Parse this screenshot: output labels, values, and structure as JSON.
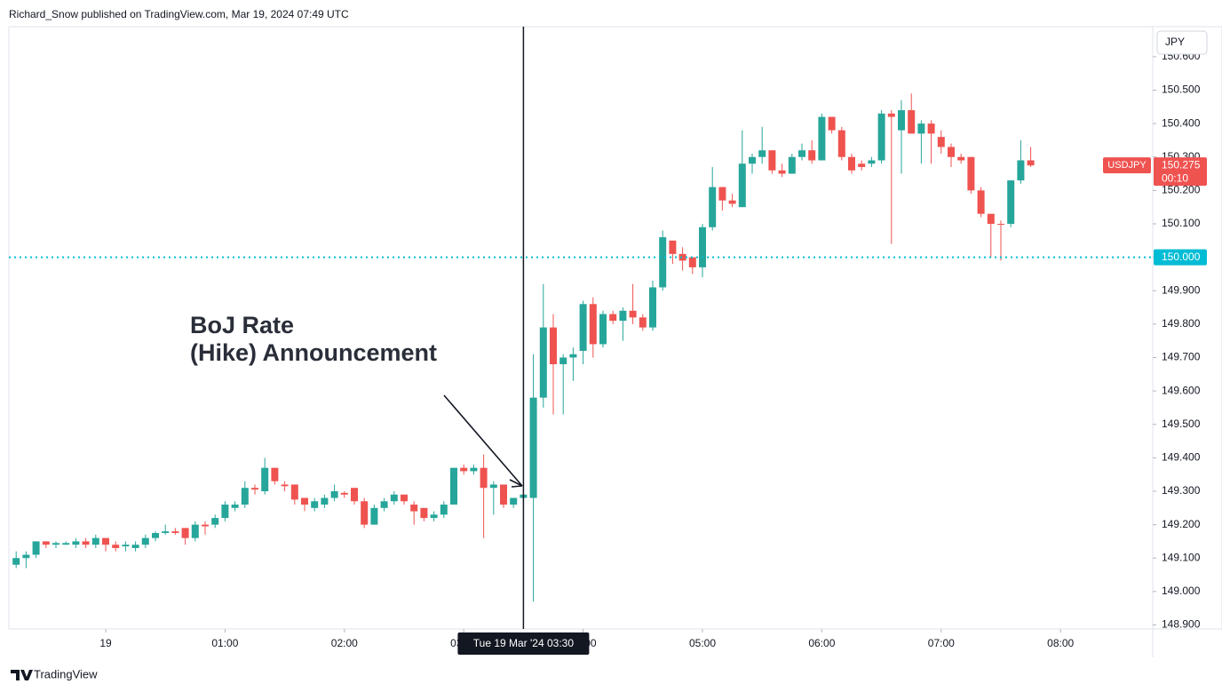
{
  "chart_data": {
    "type": "candlestick",
    "header": "Richard_Snow published on TradingView.com, Mar 19, 2024 07:49 UTC",
    "currency": "JPY",
    "symbol": "USDJPY",
    "countdown": "00:10",
    "brand": "TradingView",
    "annotation": [
      "BoJ Rate",
      "(Hike) Announcement"
    ],
    "up_color": "#26a69a",
    "down_color": "#ef5350",
    "ylim": [
      148.888,
      150.69
    ],
    "yticks": [
      {
        "value": 148.9,
        "label": "148.900"
      },
      {
        "value": 149.0,
        "label": "149.000"
      },
      {
        "value": 149.1,
        "label": "149.100"
      },
      {
        "value": 149.2,
        "label": "149.200"
      },
      {
        "value": 149.3,
        "label": "149.300"
      },
      {
        "value": 149.4,
        "label": "149.400"
      },
      {
        "value": 149.5,
        "label": "149.500"
      },
      {
        "value": 149.6,
        "label": "149.600"
      },
      {
        "value": 149.7,
        "label": "149.700"
      },
      {
        "value": 149.8,
        "label": "149.800"
      },
      {
        "value": 149.9,
        "label": "149.900"
      },
      {
        "value": 150.0,
        "label": "150.000"
      },
      {
        "value": 150.1,
        "label": "150.100"
      },
      {
        "value": 150.2,
        "label": "150.200"
      },
      {
        "value": 150.3,
        "label": "150.300"
      },
      {
        "value": 150.4,
        "label": "150.400"
      },
      {
        "value": 150.5,
        "label": "150.500"
      },
      {
        "value": 150.6,
        "label": "150.600"
      }
    ],
    "xticks": [
      {
        "value": "00:00",
        "label": "19"
      },
      "01:00",
      "02:00",
      "03:00",
      "04:00",
      "05:00",
      "06:00",
      "07:00",
      "08:00"
    ],
    "horizontal_line": {
      "value": 150.0,
      "label": "150.000",
      "color": "#00bcd4"
    },
    "last_price": {
      "value": 150.275,
      "label": "150.275"
    },
    "crosshair": {
      "x": "03:30",
      "label": "Tue 19 Mar '24  03:30"
    },
    "x": [
      "23:15",
      "23:20",
      "23:25",
      "23:30",
      "23:35",
      "23:40",
      "23:45",
      "23:50",
      "23:55",
      "00:00",
      "00:05",
      "00:10",
      "00:15",
      "00:20",
      "00:25",
      "00:30",
      "00:35",
      "00:40",
      "00:45",
      "00:50",
      "00:55",
      "01:00",
      "01:05",
      "01:10",
      "01:15",
      "01:20",
      "01:25",
      "01:30",
      "01:35",
      "01:40",
      "01:45",
      "01:50",
      "01:55",
      "02:00",
      "02:05",
      "02:10",
      "02:15",
      "02:20",
      "02:25",
      "02:30",
      "02:35",
      "02:40",
      "02:45",
      "02:50",
      "02:55",
      "03:00",
      "03:05",
      "03:10",
      "03:15",
      "03:20",
      "03:25",
      "03:30",
      "03:35",
      "03:40",
      "03:45",
      "03:50",
      "03:55",
      "04:00",
      "04:05",
      "04:10",
      "04:15",
      "04:20",
      "04:25",
      "04:30",
      "04:35",
      "04:40",
      "04:45",
      "04:50",
      "04:55",
      "05:00",
      "05:05",
      "05:10",
      "05:15",
      "05:20",
      "05:25",
      "05:30",
      "05:35",
      "05:40",
      "05:45",
      "05:50",
      "05:55",
      "06:00",
      "06:05",
      "06:10",
      "06:15",
      "06:20",
      "06:25",
      "06:30",
      "06:35",
      "06:40",
      "06:45",
      "06:50",
      "06:55",
      "07:00",
      "07:05",
      "07:10",
      "07:15",
      "07:20",
      "07:25",
      "07:30",
      "07:35",
      "07:40",
      "07:45"
    ],
    "open": [
      149.08,
      149.1,
      149.11,
      149.15,
      149.14,
      149.14,
      149.14,
      149.15,
      149.14,
      149.16,
      149.14,
      149.135,
      149.13,
      149.14,
      149.16,
      149.175,
      149.18,
      149.19,
      149.16,
      149.2,
      149.2,
      149.22,
      149.25,
      149.26,
      149.31,
      149.3,
      149.37,
      149.32,
      149.32,
      149.28,
      149.25,
      149.26,
      149.28,
      149.295,
      149.31,
      149.27,
      149.2,
      149.25,
      149.27,
      149.29,
      149.26,
      149.25,
      149.22,
      149.23,
      149.26,
      149.37,
      149.36,
      149.37,
      149.31,
      149.32,
      149.26,
      149.28,
      149.28,
      149.58,
      149.79,
      149.68,
      149.7,
      149.72,
      149.86,
      149.74,
      149.83,
      149.81,
      149.84,
      149.82,
      149.79,
      149.91,
      150.05,
      150.01,
      150.0,
      149.97,
      150.09,
      150.21,
      150.17,
      150.15,
      150.28,
      150.3,
      150.32,
      150.26,
      150.25,
      150.3,
      150.32,
      150.29,
      150.42,
      150.38,
      150.3,
      150.28,
      150.28,
      150.29,
      150.43,
      150.38,
      150.44,
      150.37,
      150.4,
      150.36,
      150.33,
      150.3,
      150.3,
      150.2,
      150.13,
      150.1,
      150.1,
      150.23,
      150.29
    ],
    "high": [
      149.12,
      149.12,
      149.15,
      149.15,
      149.15,
      149.15,
      149.16,
      149.16,
      149.17,
      149.16,
      149.15,
      149.15,
      149.15,
      149.17,
      149.18,
      149.2,
      149.19,
      149.19,
      149.21,
      149.21,
      149.23,
      149.27,
      149.27,
      149.33,
      149.32,
      149.4,
      149.37,
      149.33,
      149.32,
      149.28,
      149.28,
      149.29,
      149.32,
      149.3,
      149.31,
      149.28,
      149.26,
      149.28,
      149.3,
      149.29,
      149.27,
      149.25,
      149.24,
      149.27,
      149.37,
      149.38,
      149.38,
      149.41,
      149.33,
      149.32,
      149.28,
      149.3,
      149.71,
      149.92,
      149.83,
      149.71,
      149.73,
      149.87,
      149.88,
      149.84,
      149.84,
      149.85,
      149.92,
      149.83,
      149.93,
      150.08,
      150.05,
      150.03,
      150.0,
      150.1,
      150.27,
      150.21,
      150.19,
      150.38,
      150.31,
      150.39,
      150.32,
      150.28,
      150.31,
      150.34,
      150.35,
      150.43,
      150.42,
      150.39,
      150.31,
      150.29,
      150.3,
      150.44,
      150.44,
      150.47,
      150.49,
      150.41,
      150.41,
      150.38,
      150.34,
      150.31,
      150.3,
      150.21,
      150.13,
      150.11,
      150.23,
      150.35,
      150.33
    ],
    "low": [
      149.07,
      149.07,
      149.1,
      149.13,
      149.13,
      149.14,
      149.13,
      149.13,
      149.13,
      149.12,
      149.12,
      149.12,
      149.12,
      149.13,
      149.15,
      149.17,
      149.17,
      149.14,
      149.15,
      149.17,
      149.19,
      149.21,
      149.24,
      149.25,
      149.29,
      149.29,
      149.32,
      149.3,
      149.26,
      149.24,
      149.24,
      149.25,
      149.27,
      149.28,
      149.26,
      149.19,
      149.2,
      149.24,
      149.26,
      149.26,
      149.2,
      149.21,
      149.21,
      149.22,
      149.26,
      149.35,
      149.35,
      149.16,
      149.23,
      149.25,
      149.25,
      149.27,
      148.97,
      149.55,
      149.53,
      149.53,
      149.63,
      149.68,
      149.7,
      149.73,
      149.8,
      149.75,
      149.8,
      149.78,
      149.78,
      149.9,
      149.98,
      149.96,
      149.95,
      149.94,
      150.08,
      150.14,
      150.15,
      150.15,
      150.25,
      150.28,
      150.25,
      150.24,
      150.25,
      150.29,
      150.28,
      150.29,
      150.37,
      150.29,
      150.25,
      150.26,
      150.27,
      150.28,
      150.04,
      150.25,
      150.37,
      150.28,
      150.28,
      150.31,
      150.27,
      150.28,
      150.19,
      150.12,
      150.0,
      149.99,
      150.09,
      150.22,
      150.27
    ],
    "close": [
      149.1,
      149.11,
      149.15,
      149.14,
      149.145,
      149.145,
      149.15,
      149.14,
      149.16,
      149.14,
      149.13,
      149.14,
      149.14,
      149.16,
      149.175,
      149.18,
      149.175,
      149.16,
      149.2,
      149.195,
      149.22,
      149.26,
      149.26,
      149.31,
      149.305,
      149.37,
      149.33,
      149.315,
      149.275,
      149.26,
      149.27,
      149.28,
      149.3,
      149.29,
      149.27,
      149.2,
      149.25,
      149.27,
      149.29,
      149.27,
      149.24,
      149.22,
      149.23,
      149.26,
      149.37,
      149.36,
      149.37,
      149.31,
      149.32,
      149.26,
      149.28,
      149.29,
      149.58,
      149.79,
      149.68,
      149.7,
      149.71,
      149.86,
      149.74,
      149.83,
      149.81,
      149.84,
      149.82,
      149.79,
      149.91,
      150.06,
      150.01,
      149.99,
      149.97,
      150.09,
      150.21,
      150.17,
      150.16,
      150.28,
      150.3,
      150.32,
      150.26,
      150.25,
      150.3,
      150.32,
      150.29,
      150.42,
      150.38,
      150.3,
      150.26,
      150.27,
      150.29,
      150.43,
      150.42,
      150.44,
      150.37,
      150.4,
      150.37,
      150.33,
      150.3,
      150.29,
      150.2,
      150.13,
      150.1,
      150.1,
      150.23,
      150.29,
      150.275
    ]
  }
}
